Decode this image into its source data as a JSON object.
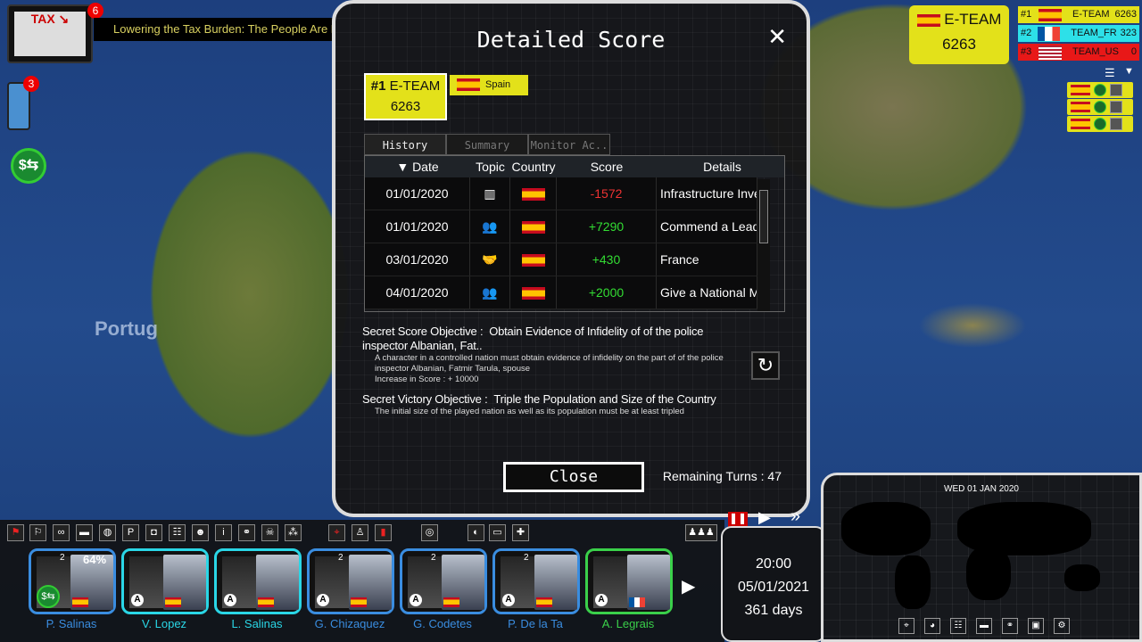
{
  "news": {
    "count": "6",
    "headline": "Lowering the Tax Burden: The People Are Happy; Leadership",
    "image_text": "TAX"
  },
  "phone": {
    "count": "3"
  },
  "money_icon": "$⇆",
  "map": {
    "label": "Portug"
  },
  "modal": {
    "title": "Detailed Score",
    "team": {
      "rank": "#1",
      "name": "E-TEAM",
      "score": "6263"
    },
    "country": "Spain",
    "tabs": [
      {
        "label": "History",
        "active": true
      },
      {
        "label": "Summary",
        "active": false
      },
      {
        "label": "Monitor Ac.."
      }
    ],
    "columns": {
      "date": "▼ Date",
      "topic": "Topic",
      "country": "Country",
      "score": "Score",
      "details": "Details"
    },
    "rows": [
      {
        "date": "01/01/2020",
        "topic": "infrastructure-icon",
        "country": "Spain",
        "score": "-1572",
        "details": "Infrastructure Invest.."
      },
      {
        "date": "01/01/2020",
        "topic": "people-icon",
        "country": "Spain",
        "score": "+7290",
        "details": "Commend a Leader"
      },
      {
        "date": "03/01/2020",
        "topic": "handshake-icon",
        "country": "Spain",
        "score": "+430",
        "details": "France"
      },
      {
        "date": "04/01/2020",
        "topic": "people-icon",
        "country": "Spain",
        "score": "+2000",
        "details": "Give a National Medal"
      }
    ],
    "secret_score": {
      "label": "Secret Score Objective :",
      "title": "Obtain Evidence of Infidelity of of the police inspector Albanian, Fat..",
      "desc": "A character in a controlled nation must obtain evidence of infidelity on the part of of the police inspector Albanian, Fatmir Tarula, spouse",
      "increase": "Increase in Score : + 10000"
    },
    "secret_victory": {
      "label": "Secret Victory Objective :",
      "title": "Triple the Population and Size of the Country",
      "desc": "The initial size of the played nation as well as its population must be at least tripled"
    },
    "close_label": "Close",
    "remaining_turns": "Remaining Turns : 47"
  },
  "score_panel": {
    "rank": "#1",
    "name": "E-TEAM",
    "score": "6263"
  },
  "ranking": [
    {
      "rank": "#1",
      "flag": "es",
      "name": "E-TEAM",
      "score": "6263",
      "color": "#e3e11a"
    },
    {
      "rank": "#2",
      "flag": "fr",
      "name": "TEAM_FR",
      "score": "323",
      "color": "#2de0e8"
    },
    {
      "rank": "#3",
      "flag": "us",
      "name": "TEAM_US",
      "score": "0",
      "color": "#e81818"
    }
  ],
  "toolbar": [
    "flag-red-icon",
    "flag-icon",
    "mask-icon",
    "tank-icon",
    "globe-icon",
    "parking-icon",
    "camera-icon",
    "group-icon",
    "agent-icon",
    "info-icon",
    "molecule-icon",
    "skull-icon",
    "network-icon",
    "location-icon",
    "add-person-icon",
    "red-flag-icon",
    "target-icon",
    "leader-icon",
    "spain-flag-icon",
    "plus-icon",
    "team-icon"
  ],
  "characters": [
    {
      "name": "P. Salinas",
      "color": "#3a8de0",
      "level": "2",
      "badge": "64%",
      "flag": "es"
    },
    {
      "name": "V. Lopez",
      "color": "#2ad6e6",
      "level": "",
      "badge": "",
      "flag": "es"
    },
    {
      "name": "L. Salinas",
      "color": "#2ad6e6",
      "level": "",
      "badge": "",
      "flag": "es"
    },
    {
      "name": "G. Chizaquez",
      "color": "#3a8de0",
      "level": "2",
      "badge": "",
      "flag": "es"
    },
    {
      "name": "G. Codetes",
      "color": "#3a8de0",
      "level": "2",
      "badge": "",
      "flag": "es"
    },
    {
      "name": "P. De la Ta",
      "color": "#3a8de0",
      "level": "2",
      "badge": "",
      "flag": "es"
    },
    {
      "name": "A. Legrais",
      "color": "#3ad04a",
      "level": "",
      "badge": "",
      "flag": "fr"
    }
  ],
  "clock": {
    "time": "20:00",
    "date": "05/01/2021",
    "days": "361 days"
  },
  "minimap": {
    "date": "WED 01 JAN 2020"
  }
}
